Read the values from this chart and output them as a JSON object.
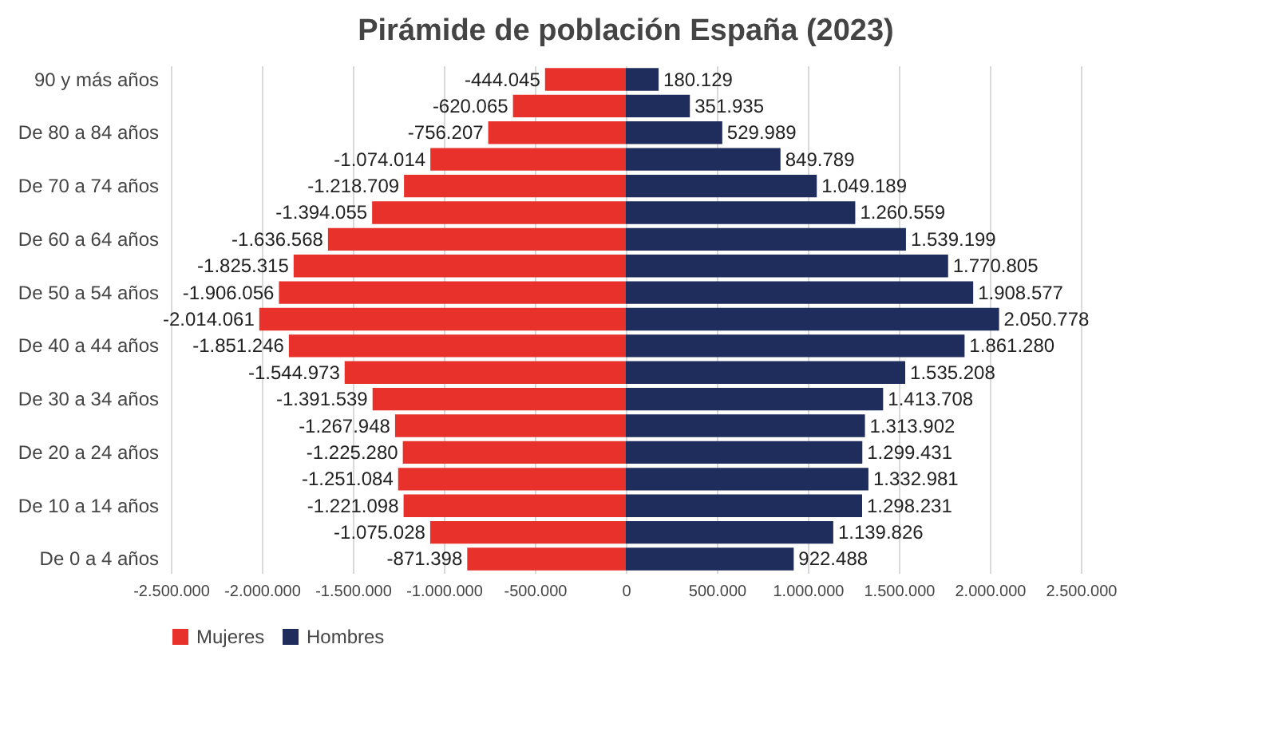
{
  "chart_data": {
    "type": "bar",
    "orientation": "horizontal",
    "title": "Pirámide de población España (2023)",
    "categories": [
      "90 y más años",
      null,
      "De 80 a 84 años",
      null,
      "De 70 a 74 años",
      null,
      "De 60 a 64 años",
      null,
      "De 50 a 54 años",
      null,
      "De 40 a 44 años",
      null,
      "De 30 a 34 años",
      null,
      "De 20 a 24 años",
      null,
      "De 10 a 14 años",
      null,
      "De 0 a 4 años"
    ],
    "series": [
      {
        "name": "Mujeres",
        "color": "#e8312a",
        "values": [
          -444045,
          -620065,
          -756207,
          -1074014,
          -1218709,
          -1394055,
          -1636568,
          -1825315,
          -1906056,
          -2014061,
          -1851246,
          -1544973,
          -1391539,
          -1267948,
          -1225280,
          -1251084,
          -1221098,
          -1075028,
          -871398
        ],
        "value_labels": [
          "-444.045",
          "-620.065",
          "-756.207",
          "-1.074.014",
          "-1.218.709",
          "-1.394.055",
          "-1.636.568",
          "-1.825.315",
          "-1.906.056",
          "-2.014.061",
          "-1.851.246",
          "-1.544.973",
          "-1.391.539",
          "-1.267.948",
          "-1.225.280",
          "-1.251.084",
          "-1.221.098",
          "-1.075.028",
          "-871.398"
        ]
      },
      {
        "name": "Hombres",
        "color": "#1f2d5c",
        "values": [
          180129,
          351935,
          529989,
          849789,
          1049189,
          1260559,
          1539199,
          1770805,
          1908577,
          2050778,
          1861280,
          1535208,
          1413708,
          1313902,
          1299431,
          1332981,
          1298231,
          1139826,
          922488
        ],
        "value_labels": [
          "180.129",
          "351.935",
          "529.989",
          "849.789",
          "1.049.189",
          "1.260.559",
          "1.539.199",
          "1.770.805",
          "1.908.577",
          "2.050.778",
          "1.861.280",
          "1.535.208",
          "1.413.708",
          "1.313.902",
          "1.299.431",
          "1.332.981",
          "1.298.231",
          "1.139.826",
          "922.488"
        ]
      }
    ],
    "xlim": [
      -2500000,
      2500000
    ],
    "xticks": [
      {
        "value": -2500000,
        "label": "-2.500.000"
      },
      {
        "value": -2000000,
        "label": "-2.000.000"
      },
      {
        "value": -1500000,
        "label": "-1.500.000"
      },
      {
        "value": -1000000,
        "label": "-1.000.000"
      },
      {
        "value": -500000,
        "label": "-500.000"
      },
      0,
      {
        "value": 500000,
        "label": "500.000"
      },
      {
        "value": 1000000,
        "label": "1.000.000"
      },
      {
        "value": 1500000,
        "label": "1.500.000"
      },
      {
        "value": 2000000,
        "label": "2.000.000"
      },
      {
        "value": 2500000,
        "label": "2.500.000"
      }
    ],
    "grid": "x",
    "legend": "bottom",
    "stacked": true
  }
}
